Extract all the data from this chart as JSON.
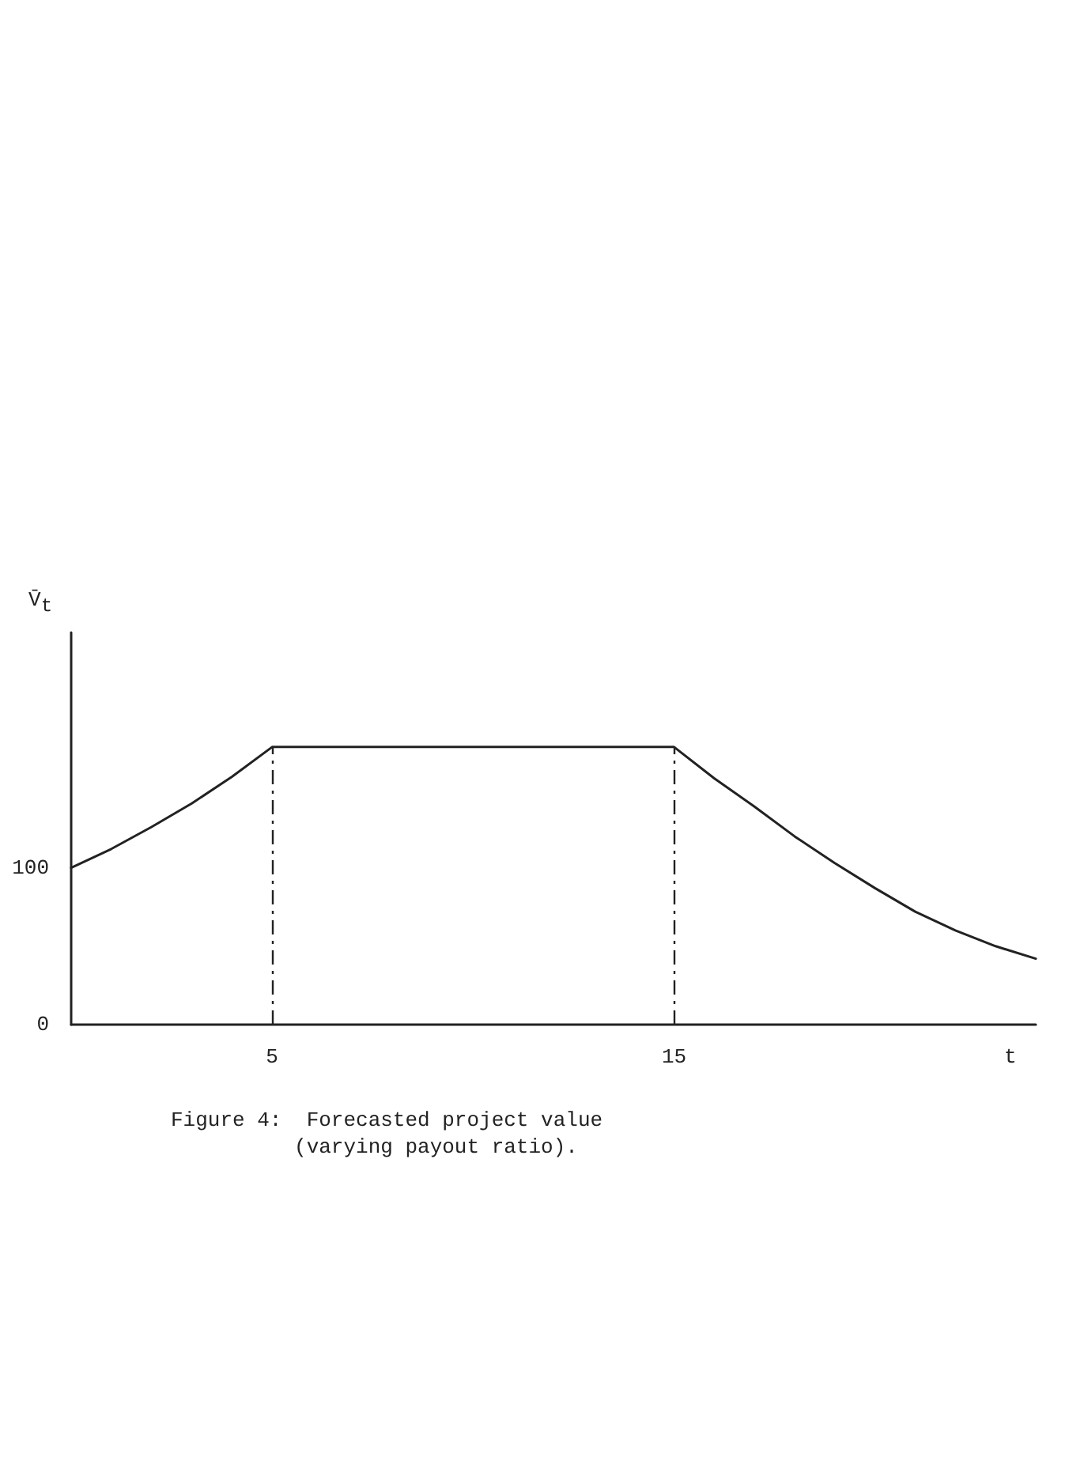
{
  "chart_data": {
    "type": "line",
    "xlabel": "t",
    "ylabel": "V̄$_{t}$",
    "x": [
      0,
      1,
      2,
      3,
      4,
      5,
      15,
      16,
      17,
      18,
      19,
      20,
      21,
      22,
      23,
      24
    ],
    "series": [
      {
        "color": "#222222",
        "values": [
          100,
          112,
          126,
          141,
          158,
          177,
          177,
          157,
          139,
          120,
          103,
          87,
          72,
          60,
          50,
          42
        ]
      }
    ],
    "xlim": [
      0,
      24
    ],
    "xticks": [
      5,
      15
    ],
    "ylim": [
      0,
      250
    ],
    "yticks": [
      0,
      100
    ],
    "ref_lines": [
      {
        "axis": "x",
        "value": 5,
        "line_style": "dashed"
      },
      {
        "axis": "x",
        "value": 15,
        "line_style": "dashed"
      }
    ],
    "annotations": [
      "Figure 4:  Forecasted project value\n          (varying payout ratio)."
    ],
    "grid": false,
    "marker": "none",
    "line_style": "solid"
  }
}
